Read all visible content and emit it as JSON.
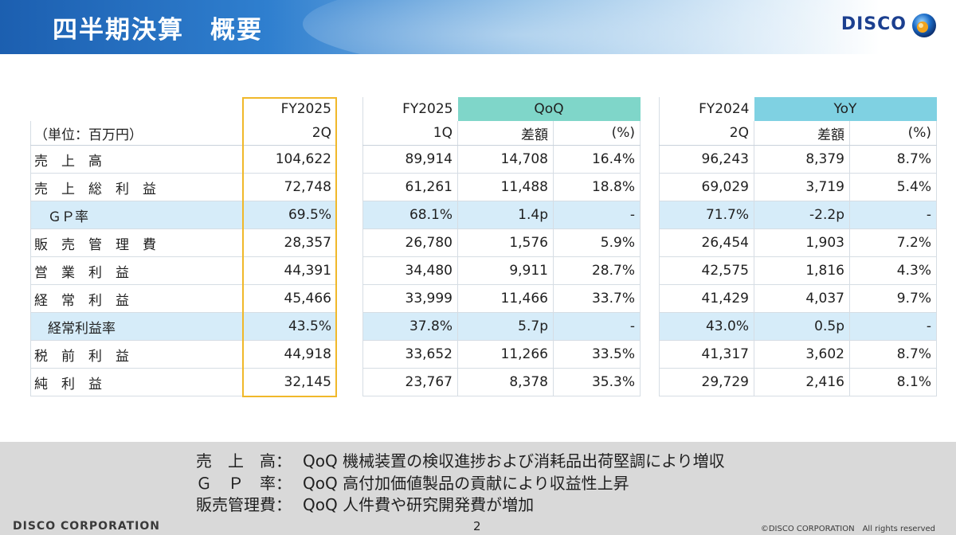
{
  "header": {
    "title": "四半期決算　概要",
    "logo": "DISCO"
  },
  "colors": {
    "accent": "#f0b82a",
    "qoq": "#7fd6c9",
    "yoy": "#7fd1e2",
    "shade": "#d6ecf9"
  },
  "left_table": {
    "head": {
      "fy": "FY2025",
      "q": "2Q",
      "unit": "（単位：百万円）"
    },
    "rows": [
      {
        "label": "売　上　高",
        "value": "104,622"
      },
      {
        "label": "売　上　総　利　益",
        "value": "72,748"
      },
      {
        "label": "　ＧＰ率",
        "value": "69.5%"
      },
      {
        "label": "販　売　管　理　費",
        "value": "28,357"
      },
      {
        "label": "営　業　利　益",
        "value": "44,391"
      },
      {
        "label": "経　常　利　益",
        "value": "45,466"
      },
      {
        "label": "　経常利益率",
        "value": "43.5%"
      },
      {
        "label": "税　前　利　益",
        "value": "44,918"
      },
      {
        "label": "純　利　益",
        "value": "32,145"
      }
    ]
  },
  "qoq_table": {
    "head": {
      "fy": "FY2025",
      "q": "1Q",
      "group": "QoQ",
      "diff": "差額",
      "pct": "(%)"
    },
    "rows": [
      {
        "base": "89,914",
        "diff": "14,708",
        "pct": "16.4%"
      },
      {
        "base": "61,261",
        "diff": "11,488",
        "pct": "18.8%"
      },
      {
        "base": "68.1%",
        "diff": "1.4p",
        "pct": "-"
      },
      {
        "base": "26,780",
        "diff": "1,576",
        "pct": "5.9%"
      },
      {
        "base": "34,480",
        "diff": "9,911",
        "pct": "28.7%"
      },
      {
        "base": "33,999",
        "diff": "11,466",
        "pct": "33.7%"
      },
      {
        "base": "37.8%",
        "diff": "5.7p",
        "pct": "-"
      },
      {
        "base": "33,652",
        "diff": "11,266",
        "pct": "33.5%"
      },
      {
        "base": "23,767",
        "diff": "8,378",
        "pct": "35.3%"
      }
    ]
  },
  "yoy_table": {
    "head": {
      "fy": "FY2024",
      "q": "2Q",
      "group": "YoY",
      "diff": "差額",
      "pct": "(%)"
    },
    "rows": [
      {
        "base": "96,243",
        "diff": "8,379",
        "pct": "8.7%"
      },
      {
        "base": "69,029",
        "diff": "3,719",
        "pct": "5.4%"
      },
      {
        "base": "71.7%",
        "diff": "-2.2p",
        "pct": "-"
      },
      {
        "base": "26,454",
        "diff": "1,903",
        "pct": "7.2%"
      },
      {
        "base": "42,575",
        "diff": "1,816",
        "pct": "4.3%"
      },
      {
        "base": "41,429",
        "diff": "4,037",
        "pct": "9.7%"
      },
      {
        "base": "43.0%",
        "diff": "0.5p",
        "pct": "-"
      },
      {
        "base": "41,317",
        "diff": "3,602",
        "pct": "8.7%"
      },
      {
        "base": "29,729",
        "diff": "2,416",
        "pct": "8.1%"
      }
    ]
  },
  "notes": [
    {
      "key": "売　上　高：",
      "text": "QoQ 機械装置の検収進捗および消耗品出荷堅調により増収"
    },
    {
      "key": "Ｇ　Ｐ　率：",
      "text": "QoQ 高付加価値製品の貢献により収益性上昇"
    },
    {
      "key": "販売管理費：",
      "text": "QoQ 人件費や研究開発費が増加"
    }
  ],
  "footer": {
    "corp": "DISCO CORPORATION",
    "page": "2",
    "copyright": "©DISCO CORPORATION　All rights reserved"
  }
}
